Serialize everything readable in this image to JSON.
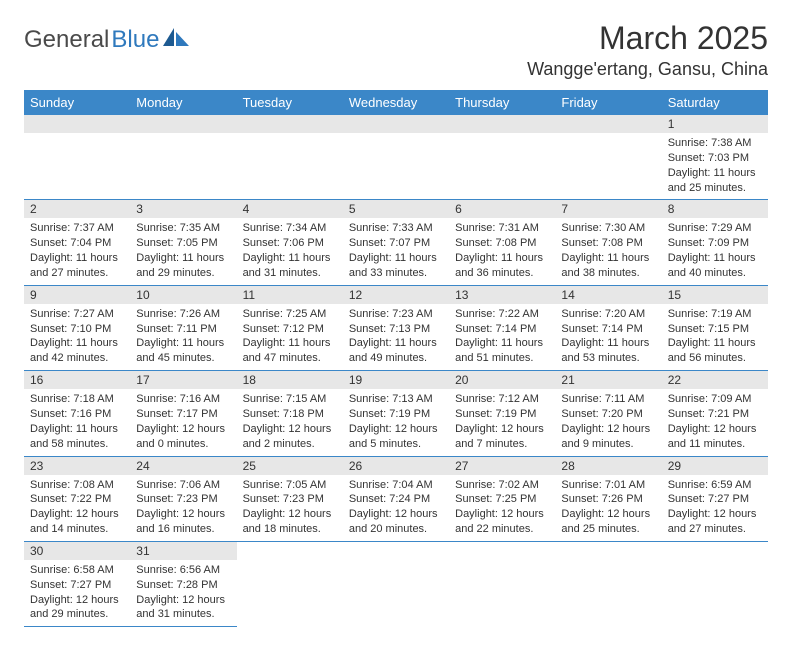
{
  "logo": {
    "part1": "General",
    "part2": "Blue"
  },
  "title": "March 2025",
  "location": "Wangge'ertang, Gansu, China",
  "colors": {
    "header_bg": "#3b87c8",
    "header_text": "#ffffff",
    "daynum_bg": "#e7e7e7",
    "row_border": "#3b87c8",
    "logo_blue": "#2f79bd",
    "logo_gray": "#4a4a4a",
    "text": "#333333",
    "background": "#ffffff"
  },
  "day_headers": [
    "Sunday",
    "Monday",
    "Tuesday",
    "Wednesday",
    "Thursday",
    "Friday",
    "Saturday"
  ],
  "weeks": [
    [
      null,
      null,
      null,
      null,
      null,
      null,
      {
        "n": "1",
        "sr": "Sunrise: 7:38 AM",
        "ss": "Sunset: 7:03 PM",
        "d1": "Daylight: 11 hours",
        "d2": "and 25 minutes."
      }
    ],
    [
      {
        "n": "2",
        "sr": "Sunrise: 7:37 AM",
        "ss": "Sunset: 7:04 PM",
        "d1": "Daylight: 11 hours",
        "d2": "and 27 minutes."
      },
      {
        "n": "3",
        "sr": "Sunrise: 7:35 AM",
        "ss": "Sunset: 7:05 PM",
        "d1": "Daylight: 11 hours",
        "d2": "and 29 minutes."
      },
      {
        "n": "4",
        "sr": "Sunrise: 7:34 AM",
        "ss": "Sunset: 7:06 PM",
        "d1": "Daylight: 11 hours",
        "d2": "and 31 minutes."
      },
      {
        "n": "5",
        "sr": "Sunrise: 7:33 AM",
        "ss": "Sunset: 7:07 PM",
        "d1": "Daylight: 11 hours",
        "d2": "and 33 minutes."
      },
      {
        "n": "6",
        "sr": "Sunrise: 7:31 AM",
        "ss": "Sunset: 7:08 PM",
        "d1": "Daylight: 11 hours",
        "d2": "and 36 minutes."
      },
      {
        "n": "7",
        "sr": "Sunrise: 7:30 AM",
        "ss": "Sunset: 7:08 PM",
        "d1": "Daylight: 11 hours",
        "d2": "and 38 minutes."
      },
      {
        "n": "8",
        "sr": "Sunrise: 7:29 AM",
        "ss": "Sunset: 7:09 PM",
        "d1": "Daylight: 11 hours",
        "d2": "and 40 minutes."
      }
    ],
    [
      {
        "n": "9",
        "sr": "Sunrise: 7:27 AM",
        "ss": "Sunset: 7:10 PM",
        "d1": "Daylight: 11 hours",
        "d2": "and 42 minutes."
      },
      {
        "n": "10",
        "sr": "Sunrise: 7:26 AM",
        "ss": "Sunset: 7:11 PM",
        "d1": "Daylight: 11 hours",
        "d2": "and 45 minutes."
      },
      {
        "n": "11",
        "sr": "Sunrise: 7:25 AM",
        "ss": "Sunset: 7:12 PM",
        "d1": "Daylight: 11 hours",
        "d2": "and 47 minutes."
      },
      {
        "n": "12",
        "sr": "Sunrise: 7:23 AM",
        "ss": "Sunset: 7:13 PM",
        "d1": "Daylight: 11 hours",
        "d2": "and 49 minutes."
      },
      {
        "n": "13",
        "sr": "Sunrise: 7:22 AM",
        "ss": "Sunset: 7:14 PM",
        "d1": "Daylight: 11 hours",
        "d2": "and 51 minutes."
      },
      {
        "n": "14",
        "sr": "Sunrise: 7:20 AM",
        "ss": "Sunset: 7:14 PM",
        "d1": "Daylight: 11 hours",
        "d2": "and 53 minutes."
      },
      {
        "n": "15",
        "sr": "Sunrise: 7:19 AM",
        "ss": "Sunset: 7:15 PM",
        "d1": "Daylight: 11 hours",
        "d2": "and 56 minutes."
      }
    ],
    [
      {
        "n": "16",
        "sr": "Sunrise: 7:18 AM",
        "ss": "Sunset: 7:16 PM",
        "d1": "Daylight: 11 hours",
        "d2": "and 58 minutes."
      },
      {
        "n": "17",
        "sr": "Sunrise: 7:16 AM",
        "ss": "Sunset: 7:17 PM",
        "d1": "Daylight: 12 hours",
        "d2": "and 0 minutes."
      },
      {
        "n": "18",
        "sr": "Sunrise: 7:15 AM",
        "ss": "Sunset: 7:18 PM",
        "d1": "Daylight: 12 hours",
        "d2": "and 2 minutes."
      },
      {
        "n": "19",
        "sr": "Sunrise: 7:13 AM",
        "ss": "Sunset: 7:19 PM",
        "d1": "Daylight: 12 hours",
        "d2": "and 5 minutes."
      },
      {
        "n": "20",
        "sr": "Sunrise: 7:12 AM",
        "ss": "Sunset: 7:19 PM",
        "d1": "Daylight: 12 hours",
        "d2": "and 7 minutes."
      },
      {
        "n": "21",
        "sr": "Sunrise: 7:11 AM",
        "ss": "Sunset: 7:20 PM",
        "d1": "Daylight: 12 hours",
        "d2": "and 9 minutes."
      },
      {
        "n": "22",
        "sr": "Sunrise: 7:09 AM",
        "ss": "Sunset: 7:21 PM",
        "d1": "Daylight: 12 hours",
        "d2": "and 11 minutes."
      }
    ],
    [
      {
        "n": "23",
        "sr": "Sunrise: 7:08 AM",
        "ss": "Sunset: 7:22 PM",
        "d1": "Daylight: 12 hours",
        "d2": "and 14 minutes."
      },
      {
        "n": "24",
        "sr": "Sunrise: 7:06 AM",
        "ss": "Sunset: 7:23 PM",
        "d1": "Daylight: 12 hours",
        "d2": "and 16 minutes."
      },
      {
        "n": "25",
        "sr": "Sunrise: 7:05 AM",
        "ss": "Sunset: 7:23 PM",
        "d1": "Daylight: 12 hours",
        "d2": "and 18 minutes."
      },
      {
        "n": "26",
        "sr": "Sunrise: 7:04 AM",
        "ss": "Sunset: 7:24 PM",
        "d1": "Daylight: 12 hours",
        "d2": "and 20 minutes."
      },
      {
        "n": "27",
        "sr": "Sunrise: 7:02 AM",
        "ss": "Sunset: 7:25 PM",
        "d1": "Daylight: 12 hours",
        "d2": "and 22 minutes."
      },
      {
        "n": "28",
        "sr": "Sunrise: 7:01 AM",
        "ss": "Sunset: 7:26 PM",
        "d1": "Daylight: 12 hours",
        "d2": "and 25 minutes."
      },
      {
        "n": "29",
        "sr": "Sunrise: 6:59 AM",
        "ss": "Sunset: 7:27 PM",
        "d1": "Daylight: 12 hours",
        "d2": "and 27 minutes."
      }
    ],
    [
      {
        "n": "30",
        "sr": "Sunrise: 6:58 AM",
        "ss": "Sunset: 7:27 PM",
        "d1": "Daylight: 12 hours",
        "d2": "and 29 minutes."
      },
      {
        "n": "31",
        "sr": "Sunrise: 6:56 AM",
        "ss": "Sunset: 7:28 PM",
        "d1": "Daylight: 12 hours",
        "d2": "and 31 minutes."
      },
      null,
      null,
      null,
      null,
      null
    ]
  ]
}
